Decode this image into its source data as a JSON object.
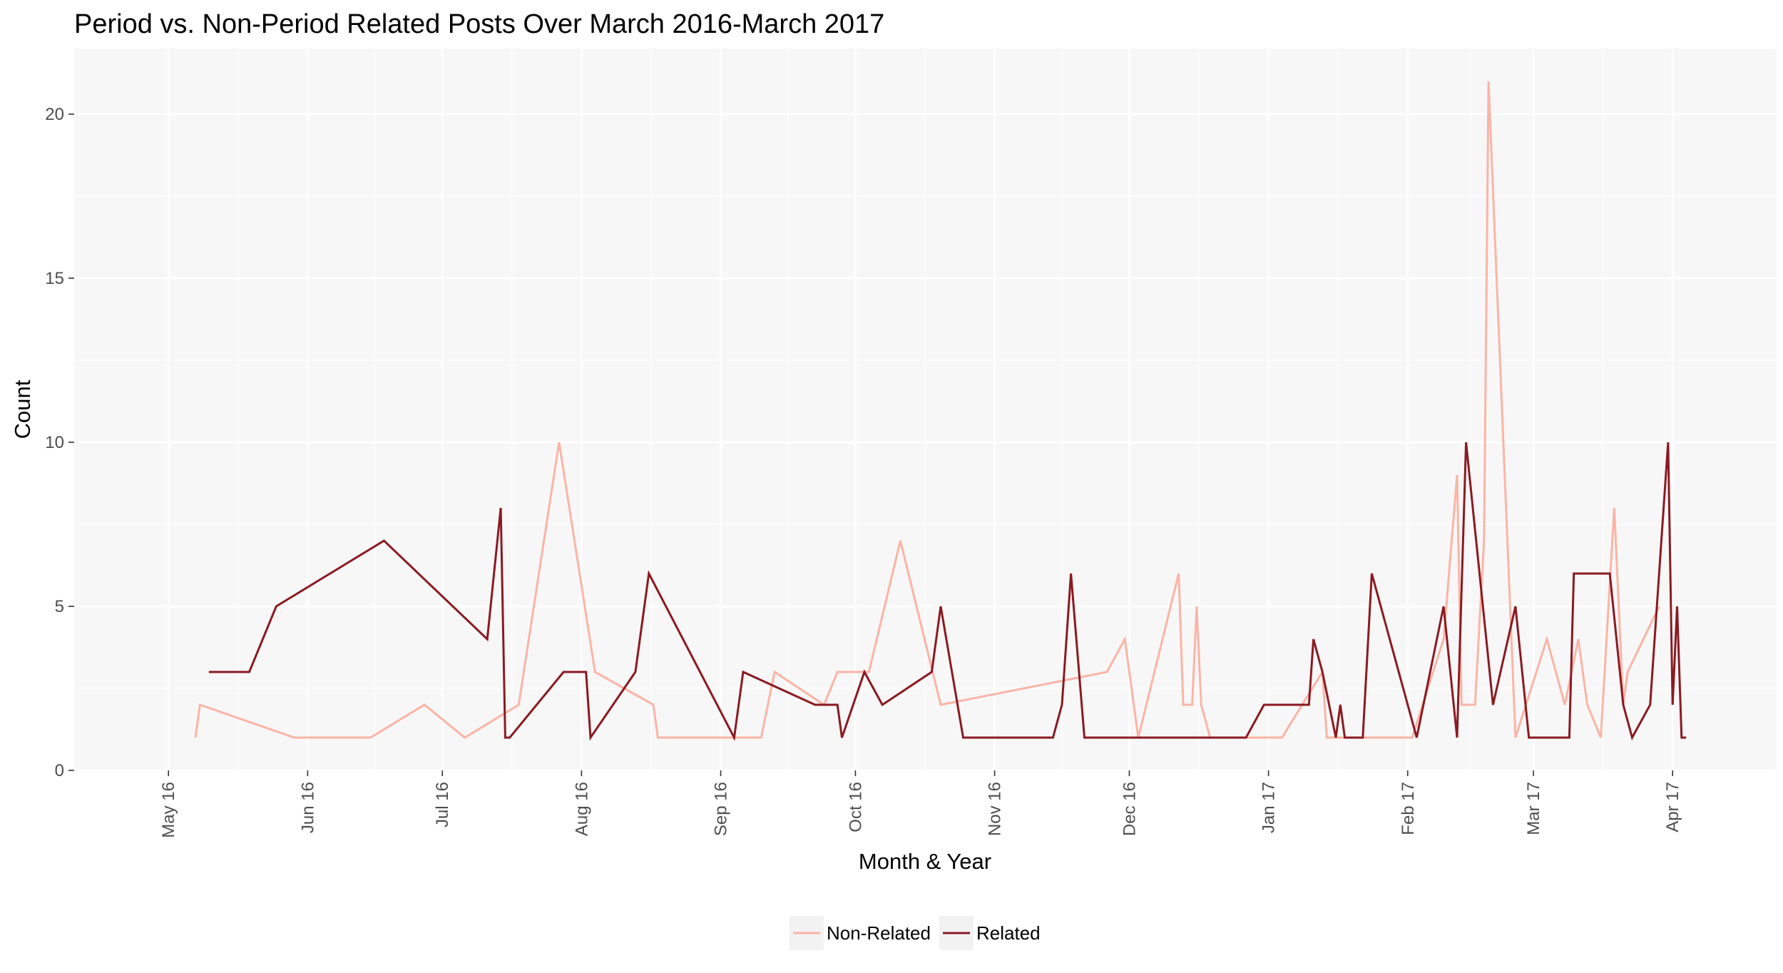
{
  "chart_data": {
    "type": "line",
    "title": "Period vs. Non-Period Related Posts Over March 2016-March 2017",
    "xlabel": "Month & Year",
    "ylabel": "Count",
    "xlim": [
      "2016-04-10",
      "2017-04-24"
    ],
    "ylim": [
      0,
      22
    ],
    "x_ticks": [
      {
        "date": "2016-05-01",
        "label": "May 16"
      },
      {
        "date": "2016-06-01",
        "label": "Jun 16"
      },
      {
        "date": "2016-07-01",
        "label": "Jul 16"
      },
      {
        "date": "2016-08-01",
        "label": "Aug 16"
      },
      {
        "date": "2016-09-01",
        "label": "Sep 16"
      },
      {
        "date": "2016-10-01",
        "label": "Oct 16"
      },
      {
        "date": "2016-11-01",
        "label": "Nov 16"
      },
      {
        "date": "2016-12-01",
        "label": "Dec 16"
      },
      {
        "date": "2017-01-01",
        "label": "Jan 17"
      },
      {
        "date": "2017-02-01",
        "label": "Feb 17"
      },
      {
        "date": "2017-03-01",
        "label": "Mar 17"
      },
      {
        "date": "2017-04-01",
        "label": "Apr 17"
      }
    ],
    "y_ticks": [
      0,
      5,
      10,
      15,
      20
    ],
    "grid": true,
    "legend_position": "bottom",
    "series": [
      {
        "name": "Non-Related",
        "color": "#fbb4a6",
        "points": [
          [
            "2016-05-07",
            1
          ],
          [
            "2016-05-08",
            2
          ],
          [
            "2016-05-29",
            1
          ],
          [
            "2016-06-15",
            1
          ],
          [
            "2016-06-27",
            2
          ],
          [
            "2016-07-06",
            1
          ],
          [
            "2016-07-18",
            2
          ],
          [
            "2016-07-27",
            10
          ],
          [
            "2016-08-04",
            3
          ],
          [
            "2016-08-17",
            2
          ],
          [
            "2016-08-18",
            1
          ],
          [
            "2016-09-10",
            1
          ],
          [
            "2016-09-13",
            3
          ],
          [
            "2016-09-24",
            2
          ],
          [
            "2016-09-27",
            3
          ],
          [
            "2016-10-04",
            3
          ],
          [
            "2016-10-11",
            7
          ],
          [
            "2016-10-20",
            2
          ],
          [
            "2016-11-26",
            3
          ],
          [
            "2016-11-30",
            4
          ],
          [
            "2016-12-03",
            1
          ],
          [
            "2016-12-12",
            6
          ],
          [
            "2016-12-13",
            2
          ],
          [
            "2016-12-15",
            2
          ],
          [
            "2016-12-16",
            5
          ],
          [
            "2016-12-17",
            2
          ],
          [
            "2016-12-19",
            1
          ],
          [
            "2017-01-04",
            1
          ],
          [
            "2017-01-13",
            3
          ],
          [
            "2017-01-14",
            1
          ],
          [
            "2017-02-02",
            1
          ],
          [
            "2017-02-09",
            4
          ],
          [
            "2017-02-12",
            9
          ],
          [
            "2017-02-13",
            2
          ],
          [
            "2017-02-16",
            2
          ],
          [
            "2017-02-18",
            7
          ],
          [
            "2017-02-19",
            21
          ],
          [
            "2017-02-25",
            1
          ],
          [
            "2017-03-04",
            4
          ],
          [
            "2017-03-08",
            2
          ],
          [
            "2017-03-11",
            4
          ],
          [
            "2017-03-13",
            2
          ],
          [
            "2017-03-16",
            1
          ],
          [
            "2017-03-19",
            8
          ],
          [
            "2017-03-21",
            2
          ],
          [
            "2017-03-22",
            3
          ],
          [
            "2017-03-29",
            5
          ]
        ]
      },
      {
        "name": "Related",
        "color": "#8b1a22",
        "points": [
          [
            "2016-05-10",
            3
          ],
          [
            "2016-05-19",
            3
          ],
          [
            "2016-05-25",
            5
          ],
          [
            "2016-06-18",
            7
          ],
          [
            "2016-07-11",
            4
          ],
          [
            "2016-07-14",
            8
          ],
          [
            "2016-07-15",
            1
          ],
          [
            "2016-07-16",
            1
          ],
          [
            "2016-07-28",
            3
          ],
          [
            "2016-08-02",
            3
          ],
          [
            "2016-08-03",
            1
          ],
          [
            "2016-08-13",
            3
          ],
          [
            "2016-08-16",
            6
          ],
          [
            "2016-09-04",
            1
          ],
          [
            "2016-09-06",
            3
          ],
          [
            "2016-09-22",
            2
          ],
          [
            "2016-09-27",
            2
          ],
          [
            "2016-09-28",
            1
          ],
          [
            "2016-10-03",
            3
          ],
          [
            "2016-10-07",
            2
          ],
          [
            "2016-10-18",
            3
          ],
          [
            "2016-10-20",
            5
          ],
          [
            "2016-10-25",
            1
          ],
          [
            "2016-11-14",
            1
          ],
          [
            "2016-11-16",
            2
          ],
          [
            "2016-11-18",
            6
          ],
          [
            "2016-11-21",
            1
          ],
          [
            "2016-12-27",
            1
          ],
          [
            "2016-12-31",
            2
          ],
          [
            "2017-01-10",
            2
          ],
          [
            "2017-01-11",
            4
          ],
          [
            "2017-01-13",
            3
          ],
          [
            "2017-01-16",
            1
          ],
          [
            "2017-01-17",
            2
          ],
          [
            "2017-01-18",
            1
          ],
          [
            "2017-01-22",
            1
          ],
          [
            "2017-01-24",
            6
          ],
          [
            "2017-02-03",
            1
          ],
          [
            "2017-02-09",
            5
          ],
          [
            "2017-02-12",
            1
          ],
          [
            "2017-02-14",
            10
          ],
          [
            "2017-02-20",
            2
          ],
          [
            "2017-02-25",
            5
          ],
          [
            "2017-02-28",
            1
          ],
          [
            "2017-03-09",
            1
          ],
          [
            "2017-03-10",
            6
          ],
          [
            "2017-03-18",
            6
          ],
          [
            "2017-03-21",
            2
          ],
          [
            "2017-03-23",
            1
          ],
          [
            "2017-03-27",
            2
          ],
          [
            "2017-03-31",
            10
          ],
          [
            "2017-04-01",
            2
          ],
          [
            "2017-04-02",
            5
          ],
          [
            "2017-04-03",
            1
          ],
          [
            "2017-04-04",
            1
          ]
        ]
      }
    ]
  }
}
